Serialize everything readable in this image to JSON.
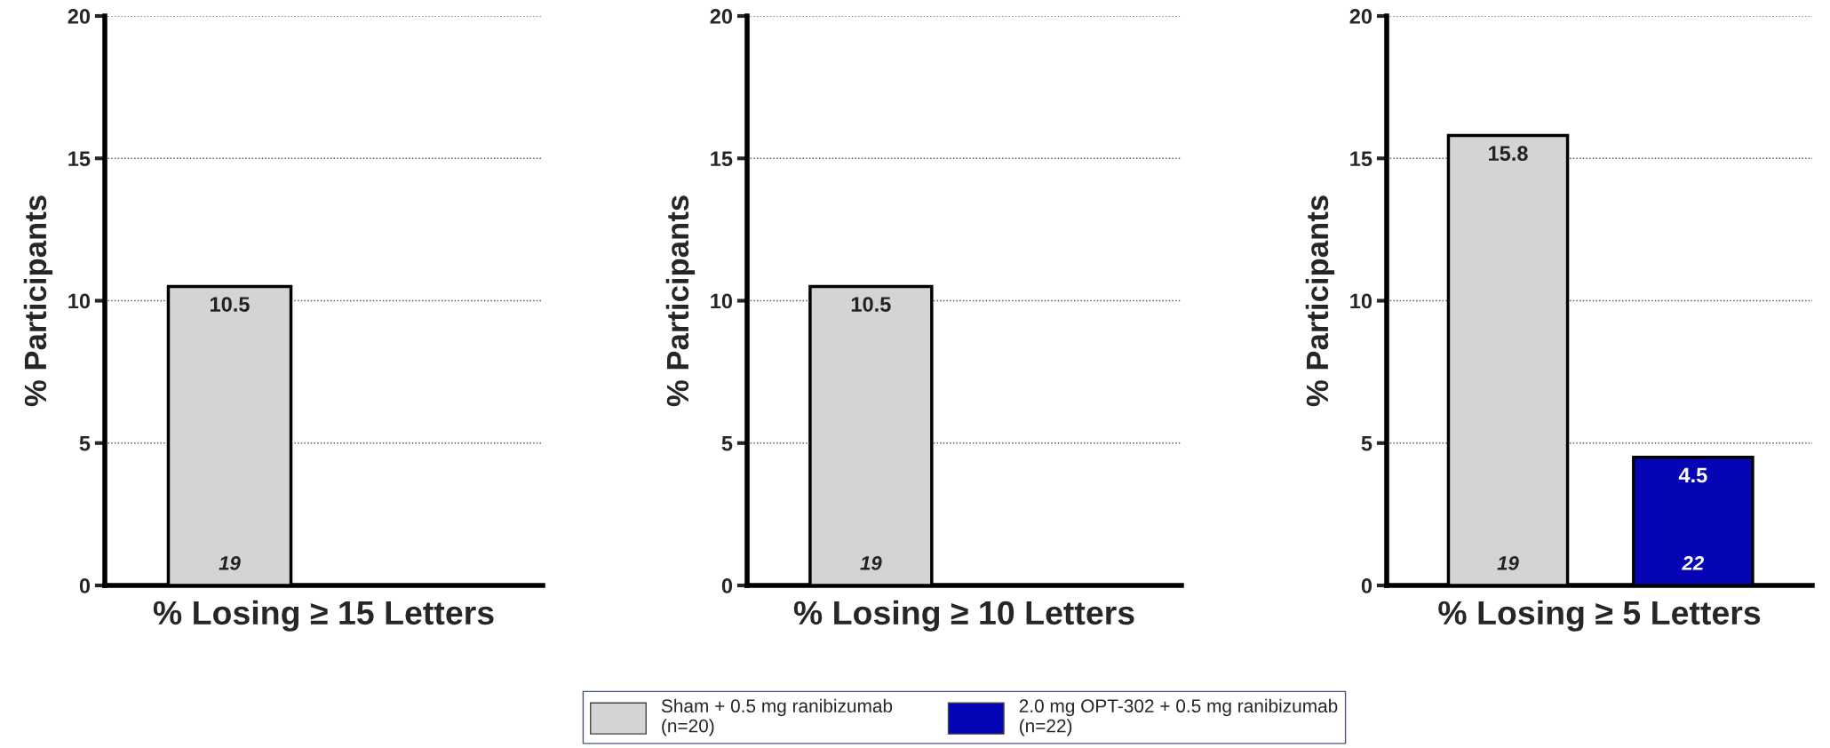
{
  "chart_data": [
    {
      "type": "bar",
      "xlabel": "% Losing ≥ 15 Letters",
      "ylabel": "% Participants",
      "categories": [
        null
      ],
      "ylim": [
        0,
        20
      ],
      "yticks": [
        0,
        5,
        10,
        15,
        20
      ],
      "grid": "y",
      "legend": false,
      "series": [
        {
          "color": "#d4d4d4",
          "values": [
            10.5
          ],
          "value_labels": [
            "10.5"
          ]
        }
      ],
      "annotations": [
        "19"
      ]
    },
    {
      "type": "bar",
      "xlabel": "% Losing ≥ 10 Letters",
      "ylabel": "% Participants",
      "categories": [
        null
      ],
      "ylim": [
        0,
        20
      ],
      "yticks": [
        0,
        5,
        10,
        15,
        20
      ],
      "grid": "y",
      "legend": "bottom",
      "series": [
        {
          "name": "Sham + 0.5 mg ranibizumab\n(n=20)",
          "color": "#d4d4d4",
          "values": [
            10.5
          ],
          "value_labels": [
            "10.5"
          ]
        },
        {
          "name": "2.0 mg OPT-302 + 0.5 mg ranibizumab\n(n=22)",
          "color": "#0505b5",
          "values": [
            null
          ]
        }
      ],
      "annotations": [
        "19"
      ]
    },
    {
      "type": "bar",
      "xlabel": "% Losing ≥ 5 Letters",
      "ylabel": "% Participants",
      "categories": [
        null
      ],
      "ylim": [
        0,
        20
      ],
      "yticks": [
        0,
        5,
        10,
        15,
        20
      ],
      "grid": "y",
      "legend": false,
      "series": [
        {
          "color": "#d4d4d4",
          "values": [
            15.8
          ],
          "value_labels": [
            "15.8"
          ]
        },
        {
          "color": "#0505b5",
          "values": [
            4.5
          ],
          "value_labels": [
            "4.5"
          ]
        }
      ],
      "annotations": [
        "19",
        "22"
      ]
    }
  ]
}
